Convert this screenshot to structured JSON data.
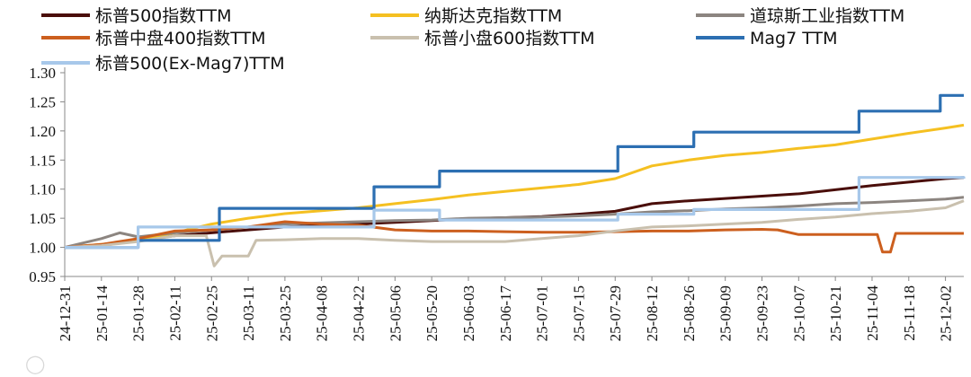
{
  "chart_data": {
    "type": "line",
    "title": "",
    "xlabel": "",
    "ylabel": "",
    "ylim": [
      0.95,
      1.3
    ],
    "yticks": [
      "0.95",
      "1.00",
      "1.05",
      "1.10",
      "1.15",
      "1.20",
      "1.25",
      "1.30"
    ],
    "x_ticks": [
      "24-12-31",
      "25-01-14",
      "25-01-28",
      "25-02-11",
      "25-02-25",
      "25-03-11",
      "25-03-25",
      "25-04-08",
      "25-04-22",
      "25-05-06",
      "25-05-20",
      "25-06-03",
      "25-06-17",
      "25-07-01",
      "25-07-15",
      "25-07-29",
      "25-08-12",
      "25-08-26",
      "25-09-09",
      "25-09-23",
      "25-10-07",
      "25-10-21",
      "25-11-04",
      "25-11-18",
      "25-12-02"
    ],
    "x_range": [
      "2024-12-31",
      "2025-12-09"
    ],
    "legend_position": "top",
    "grid": false,
    "series": [
      {
        "name": "标普500指数TTM",
        "color": "#4a0e0a",
        "step": false,
        "points": [
          [
            "2024-12-31",
            1.0
          ],
          [
            "2025-01-14",
            1.003
          ],
          [
            "2025-01-28",
            1.012
          ],
          [
            "2025-02-11",
            1.02
          ],
          [
            "2025-02-25",
            1.025
          ],
          [
            "2025-03-11",
            1.03
          ],
          [
            "2025-03-25",
            1.035
          ],
          [
            "2025-04-08",
            1.038
          ],
          [
            "2025-04-22",
            1.04
          ],
          [
            "2025-05-06",
            1.043
          ],
          [
            "2025-05-20",
            1.046
          ],
          [
            "2025-06-03",
            1.049
          ],
          [
            "2025-06-17",
            1.051
          ],
          [
            "2025-07-01",
            1.053
          ],
          [
            "2025-07-15",
            1.057
          ],
          [
            "2025-07-29",
            1.062
          ],
          [
            "2025-08-12",
            1.075
          ],
          [
            "2025-08-26",
            1.08
          ],
          [
            "2025-09-09",
            1.084
          ],
          [
            "2025-09-23",
            1.088
          ],
          [
            "2025-10-07",
            1.092
          ],
          [
            "2025-10-21",
            1.099
          ],
          [
            "2025-11-04",
            1.106
          ],
          [
            "2025-11-18",
            1.112
          ],
          [
            "2025-12-02",
            1.118
          ],
          [
            "2025-12-09",
            1.12
          ]
        ]
      },
      {
        "name": "纳斯达克指数TTM",
        "color": "#f5c021",
        "step": false,
        "points": [
          [
            "2024-12-31",
            1.0
          ],
          [
            "2025-01-14",
            1.005
          ],
          [
            "2025-01-28",
            1.012
          ],
          [
            "2025-02-11",
            1.025
          ],
          [
            "2025-02-25",
            1.04
          ],
          [
            "2025-03-11",
            1.05
          ],
          [
            "2025-03-25",
            1.058
          ],
          [
            "2025-04-08",
            1.063
          ],
          [
            "2025-04-22",
            1.068
          ],
          [
            "2025-05-06",
            1.075
          ],
          [
            "2025-05-20",
            1.082
          ],
          [
            "2025-06-03",
            1.09
          ],
          [
            "2025-06-17",
            1.096
          ],
          [
            "2025-07-01",
            1.102
          ],
          [
            "2025-07-15",
            1.108
          ],
          [
            "2025-07-29",
            1.118
          ],
          [
            "2025-08-12",
            1.14
          ],
          [
            "2025-08-26",
            1.15
          ],
          [
            "2025-09-09",
            1.158
          ],
          [
            "2025-09-23",
            1.163
          ],
          [
            "2025-10-07",
            1.17
          ],
          [
            "2025-10-21",
            1.176
          ],
          [
            "2025-11-04",
            1.186
          ],
          [
            "2025-11-18",
            1.196
          ],
          [
            "2025-12-02",
            1.205
          ],
          [
            "2025-12-09",
            1.21
          ]
        ]
      },
      {
        "name": "道琼斯工业指数TTM",
        "color": "#8c8580",
        "step": false,
        "points": [
          [
            "2024-12-31",
            1.0
          ],
          [
            "2025-01-14",
            1.015
          ],
          [
            "2025-01-21",
            1.025
          ],
          [
            "2025-01-28",
            1.018
          ],
          [
            "2025-02-11",
            1.025
          ],
          [
            "2025-02-25",
            1.03
          ],
          [
            "2025-03-11",
            1.035
          ],
          [
            "2025-03-25",
            1.04
          ],
          [
            "2025-04-08",
            1.042
          ],
          [
            "2025-04-22",
            1.044
          ],
          [
            "2025-05-06",
            1.046
          ],
          [
            "2025-05-20",
            1.047
          ],
          [
            "2025-06-03",
            1.05
          ],
          [
            "2025-06-17",
            1.051
          ],
          [
            "2025-07-01",
            1.052
          ],
          [
            "2025-07-15",
            1.054
          ],
          [
            "2025-07-29",
            1.057
          ],
          [
            "2025-08-12",
            1.061
          ],
          [
            "2025-08-26",
            1.063
          ],
          [
            "2025-09-09",
            1.066
          ],
          [
            "2025-09-23",
            1.068
          ],
          [
            "2025-10-07",
            1.071
          ],
          [
            "2025-10-21",
            1.075
          ],
          [
            "2025-11-04",
            1.077
          ],
          [
            "2025-11-18",
            1.08
          ],
          [
            "2025-12-02",
            1.083
          ],
          [
            "2025-12-09",
            1.086
          ]
        ]
      },
      {
        "name": "标普中盘400指数TTM",
        "color": "#cc5f1e",
        "step": false,
        "points": [
          [
            "2024-12-31",
            1.0
          ],
          [
            "2025-01-14",
            1.005
          ],
          [
            "2025-01-28",
            1.015
          ],
          [
            "2025-02-11",
            1.028
          ],
          [
            "2025-02-25",
            1.03
          ],
          [
            "2025-03-11",
            1.035
          ],
          [
            "2025-03-25",
            1.044
          ],
          [
            "2025-04-08",
            1.04
          ],
          [
            "2025-04-22",
            1.038
          ],
          [
            "2025-05-06",
            1.03
          ],
          [
            "2025-05-20",
            1.028
          ],
          [
            "2025-06-03",
            1.028
          ],
          [
            "2025-06-17",
            1.027
          ],
          [
            "2025-07-01",
            1.026
          ],
          [
            "2025-07-15",
            1.026
          ],
          [
            "2025-07-29",
            1.027
          ],
          [
            "2025-08-12",
            1.028
          ],
          [
            "2025-08-26",
            1.028
          ],
          [
            "2025-09-09",
            1.03
          ],
          [
            "2025-09-23",
            1.031
          ],
          [
            "2025-09-29",
            1.03
          ],
          [
            "2025-10-07",
            1.022
          ],
          [
            "2025-10-21",
            1.022
          ],
          [
            "2025-11-04",
            1.022
          ],
          [
            "2025-11-06",
            1.022
          ],
          [
            "2025-11-08",
            0.992
          ],
          [
            "2025-11-11",
            0.992
          ],
          [
            "2025-11-13",
            1.024
          ],
          [
            "2025-11-18",
            1.024
          ],
          [
            "2025-12-02",
            1.024
          ],
          [
            "2025-12-09",
            1.024
          ]
        ]
      },
      {
        "name": "标普小盘600指数TTM",
        "color": "#c9c0ae",
        "step": false,
        "points": [
          [
            "2024-12-31",
            1.0
          ],
          [
            "2025-01-14",
            1.003
          ],
          [
            "2025-01-28",
            1.01
          ],
          [
            "2025-02-11",
            1.02
          ],
          [
            "2025-02-23",
            1.02
          ],
          [
            "2025-02-26",
            0.968
          ],
          [
            "2025-03-01",
            0.985
          ],
          [
            "2025-03-11",
            0.985
          ],
          [
            "2025-03-14",
            1.012
          ],
          [
            "2025-03-25",
            1.013
          ],
          [
            "2025-04-08",
            1.015
          ],
          [
            "2025-04-22",
            1.015
          ],
          [
            "2025-05-06",
            1.012
          ],
          [
            "2025-05-20",
            1.01
          ],
          [
            "2025-06-03",
            1.01
          ],
          [
            "2025-06-17",
            1.01
          ],
          [
            "2025-07-01",
            1.015
          ],
          [
            "2025-07-15",
            1.02
          ],
          [
            "2025-07-29",
            1.028
          ],
          [
            "2025-08-12",
            1.035
          ],
          [
            "2025-08-26",
            1.037
          ],
          [
            "2025-09-09",
            1.04
          ],
          [
            "2025-09-23",
            1.043
          ],
          [
            "2025-10-07",
            1.048
          ],
          [
            "2025-10-21",
            1.052
          ],
          [
            "2025-11-04",
            1.058
          ],
          [
            "2025-11-18",
            1.062
          ],
          [
            "2025-12-02",
            1.068
          ],
          [
            "2025-12-09",
            1.08
          ]
        ]
      },
      {
        "name": "Mag7 TTM",
        "color": "#2c6fb2",
        "step": true,
        "points": [
          [
            "2024-12-31",
            1.0
          ],
          [
            "2025-01-28",
            1.012
          ],
          [
            "2025-02-28",
            1.067
          ],
          [
            "2025-04-28",
            1.104
          ],
          [
            "2025-05-23",
            1.131
          ],
          [
            "2025-07-30",
            1.173
          ],
          [
            "2025-08-28",
            1.198
          ],
          [
            "2025-10-30",
            1.234
          ],
          [
            "2025-11-30",
            1.261
          ],
          [
            "2025-12-09",
            1.261
          ]
        ]
      },
      {
        "name": "标普500(Ex-Mag7)TTM",
        "color": "#a7c8ea",
        "step": true,
        "points": [
          [
            "2024-12-31",
            1.0
          ],
          [
            "2025-01-28",
            1.035
          ],
          [
            "2025-04-28",
            1.064
          ],
          [
            "2025-05-23",
            1.047
          ],
          [
            "2025-07-30",
            1.057
          ],
          [
            "2025-08-28",
            1.065
          ],
          [
            "2025-10-30",
            1.12
          ],
          [
            "2025-12-09",
            1.118
          ]
        ]
      }
    ]
  }
}
